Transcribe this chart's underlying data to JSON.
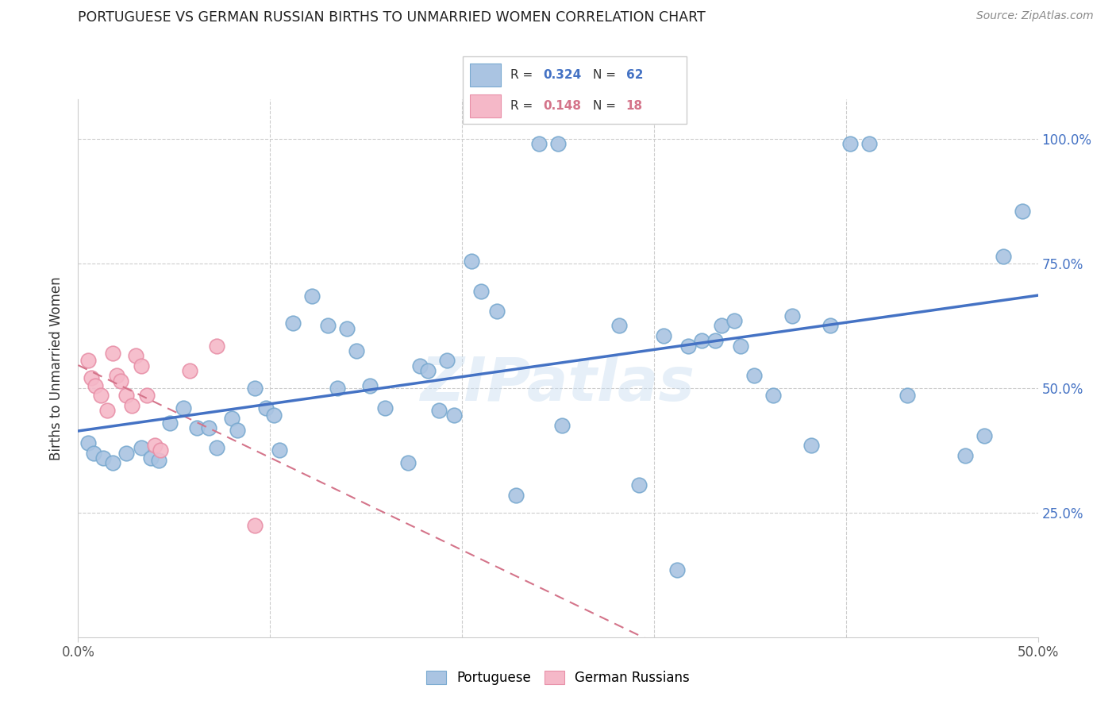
{
  "title": "PORTUGUESE VS GERMAN RUSSIAN BIRTHS TO UNMARRIED WOMEN CORRELATION CHART",
  "source": "Source: ZipAtlas.com",
  "ylabel": "Births to Unmarried Women",
  "watermark": "ZIPatlas",
  "xlim": [
    0.0,
    0.5
  ],
  "ylim": [
    0.0,
    1.08
  ],
  "xticks": [
    0.0,
    0.5
  ],
  "xticklabels": [
    "0.0%",
    "50.0%"
  ],
  "yticks": [
    0.0,
    0.25,
    0.5,
    0.75,
    1.0
  ],
  "yticklabels_right": [
    "100.0%",
    "75.0%",
    "50.0%",
    "25.0%",
    ""
  ],
  "R1": "0.324",
  "N1": "62",
  "R2": "0.148",
  "N2": "18",
  "portuguese_color": "#aac4e2",
  "portuguese_edge_color": "#7aaad0",
  "german_russian_color": "#f5b8c8",
  "german_russian_edge_color": "#e890a8",
  "portuguese_line_color": "#4472c4",
  "german_russian_line_color": "#d4748a",
  "portuguese_x": [
    0.24,
    0.25,
    0.005,
    0.008,
    0.013,
    0.018,
    0.025,
    0.033,
    0.038,
    0.042,
    0.048,
    0.055,
    0.062,
    0.068,
    0.072,
    0.08,
    0.083,
    0.092,
    0.098,
    0.102,
    0.105,
    0.112,
    0.122,
    0.13,
    0.135,
    0.14,
    0.145,
    0.152,
    0.16,
    0.172,
    0.178,
    0.182,
    0.188,
    0.192,
    0.196,
    0.205,
    0.21,
    0.218,
    0.228,
    0.252,
    0.282,
    0.292,
    0.305,
    0.312,
    0.318,
    0.325,
    0.332,
    0.335,
    0.342,
    0.345,
    0.352,
    0.362,
    0.372,
    0.382,
    0.392,
    0.402,
    0.412,
    0.432,
    0.462,
    0.472,
    0.482,
    0.492
  ],
  "portuguese_y": [
    0.99,
    0.99,
    0.39,
    0.37,
    0.36,
    0.35,
    0.37,
    0.38,
    0.36,
    0.355,
    0.43,
    0.46,
    0.42,
    0.42,
    0.38,
    0.44,
    0.415,
    0.5,
    0.46,
    0.445,
    0.375,
    0.63,
    0.685,
    0.625,
    0.5,
    0.62,
    0.575,
    0.505,
    0.46,
    0.35,
    0.545,
    0.535,
    0.455,
    0.555,
    0.445,
    0.755,
    0.695,
    0.655,
    0.285,
    0.425,
    0.625,
    0.305,
    0.605,
    0.135,
    0.585,
    0.595,
    0.595,
    0.625,
    0.635,
    0.585,
    0.525,
    0.485,
    0.645,
    0.385,
    0.625,
    0.99,
    0.99,
    0.485,
    0.365,
    0.405,
    0.765,
    0.855
  ],
  "german_russian_x": [
    0.005,
    0.007,
    0.009,
    0.012,
    0.015,
    0.018,
    0.02,
    0.022,
    0.025,
    0.028,
    0.03,
    0.033,
    0.036,
    0.04,
    0.043,
    0.058,
    0.072,
    0.092
  ],
  "german_russian_y": [
    0.555,
    0.52,
    0.505,
    0.485,
    0.455,
    0.57,
    0.525,
    0.515,
    0.485,
    0.465,
    0.565,
    0.545,
    0.485,
    0.385,
    0.375,
    0.535,
    0.585,
    0.225
  ]
}
